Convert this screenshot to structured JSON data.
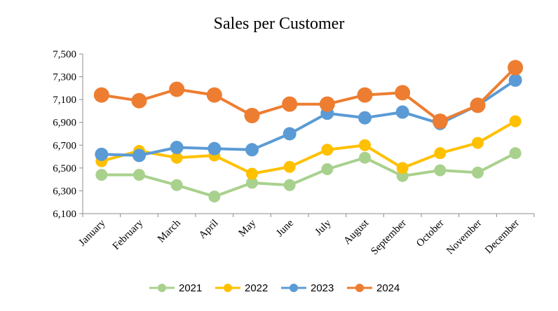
{
  "chart_data": {
    "type": "line",
    "title": "Sales per Customer",
    "xlabel": "",
    "ylabel": "",
    "categories": [
      "January",
      "February",
      "March",
      "April",
      "May",
      "June",
      "July",
      "August",
      "September",
      "October",
      "November",
      "December"
    ],
    "ylim": [
      6100,
      7500
    ],
    "yticks": [
      6100,
      6300,
      6500,
      6700,
      6900,
      7100,
      7300,
      7500
    ],
    "ytick_labels": [
      "6,100",
      "6,300",
      "6,500",
      "6,700",
      "6,900",
      "7,100",
      "7,300",
      "7,500"
    ],
    "grid": false,
    "legend_position": "bottom",
    "series": [
      {
        "name": "2021",
        "color": "#a9d18e",
        "values": [
          6440,
          6440,
          6350,
          6250,
          6370,
          6350,
          6490,
          6590,
          6430,
          6480,
          6460,
          6630
        ]
      },
      {
        "name": "2022",
        "color": "#ffc000",
        "values": [
          6560,
          6650,
          6590,
          6610,
          6450,
          6510,
          6660,
          6700,
          6500,
          6630,
          6720,
          6910
        ]
      },
      {
        "name": "2023",
        "color": "#5b9bd5",
        "values": [
          6620,
          6610,
          6680,
          6670,
          6660,
          6800,
          6980,
          6940,
          6990,
          6890,
          7050,
          7270
        ]
      },
      {
        "name": "2024",
        "color": "#ed7d31",
        "values": [
          7140,
          7090,
          7190,
          7140,
          6960,
          7060,
          7060,
          7140,
          7160,
          6910,
          7050,
          7380
        ]
      }
    ]
  }
}
